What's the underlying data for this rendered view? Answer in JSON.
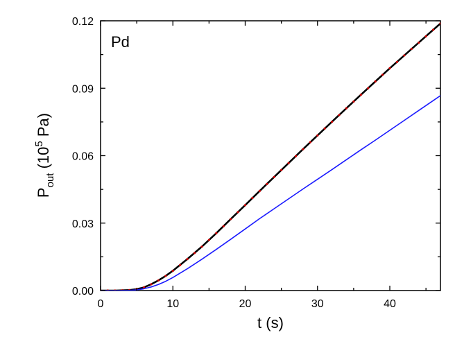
{
  "chart_data": {
    "type": "line",
    "title": "",
    "annotation": "Pd",
    "xlabel": "t (s)",
    "ylabel": {
      "base": "P",
      "subscript": "out",
      "unit_open": " (10",
      "superscript": "5",
      "unit_close": " Pa)"
    },
    "xlim": [
      0,
      47
    ],
    "ylim": [
      0,
      0.12
    ],
    "xticks": [
      0,
      10,
      20,
      30,
      40
    ],
    "xtick_labels": [
      "0",
      "10",
      "20",
      "30",
      "40"
    ],
    "yticks": [
      0,
      0.03,
      0.06,
      0.09,
      0.12
    ],
    "ytick_labels": [
      "0.00",
      "0.03",
      "0.06",
      "0.09",
      "0.12"
    ],
    "legend": "none",
    "grid": false,
    "colors": {
      "black": "#000000",
      "red": "#cc0000",
      "blue": "#1a1aff"
    },
    "series": [
      {
        "style": "line",
        "color": "#000000",
        "x": [
          0,
          2,
          4,
          5,
          6,
          7,
          8,
          9,
          10,
          12,
          14,
          16,
          18,
          20,
          22,
          24,
          26,
          28,
          30,
          32,
          34,
          36,
          38,
          40,
          42,
          44,
          46,
          47
        ],
        "y": [
          0,
          0,
          0.0002,
          0.0006,
          0.0014,
          0.0028,
          0.0045,
          0.0065,
          0.0088,
          0.014,
          0.0195,
          0.0255,
          0.0318,
          0.038,
          0.0443,
          0.0505,
          0.0567,
          0.0629,
          0.069,
          0.0751,
          0.0811,
          0.0871,
          0.093,
          0.0989,
          0.1046,
          0.1103,
          0.116,
          0.1188
        ]
      },
      {
        "style": "dots",
        "color": "#cc0000",
        "x": [
          0,
          1,
          2,
          3,
          4,
          5,
          6,
          7,
          8,
          9,
          10,
          11,
          12,
          13,
          14,
          15,
          16,
          17,
          18,
          19,
          20,
          21,
          22,
          23,
          24,
          25,
          26,
          27,
          28,
          29,
          30,
          31,
          32,
          33,
          34,
          35,
          36,
          37,
          38,
          39,
          40,
          41,
          42,
          43,
          44,
          45,
          46,
          47
        ],
        "y": [
          0,
          0,
          0,
          0.0001,
          0.0002,
          0.0006,
          0.0014,
          0.0028,
          0.0045,
          0.0065,
          0.0088,
          0.0113,
          0.014,
          0.0167,
          0.0195,
          0.0225,
          0.0255,
          0.0286,
          0.0318,
          0.0349,
          0.038,
          0.0412,
          0.0443,
          0.0474,
          0.0505,
          0.0536,
          0.0567,
          0.0598,
          0.0629,
          0.066,
          0.069,
          0.0721,
          0.0751,
          0.0781,
          0.0811,
          0.0841,
          0.0871,
          0.09,
          0.093,
          0.096,
          0.0989,
          0.1017,
          0.1046,
          0.1075,
          0.1103,
          0.1131,
          0.116,
          0.1188
        ]
      },
      {
        "style": "line",
        "color": "#1a1aff",
        "x": [
          0,
          2,
          4,
          5,
          6,
          7,
          8,
          9,
          10,
          12,
          14,
          16,
          18,
          20,
          22,
          24,
          26,
          28,
          30,
          32,
          34,
          36,
          38,
          40,
          42,
          44,
          46,
          47
        ],
        "y": [
          0,
          0,
          0.0001,
          0.0003,
          0.0008,
          0.0016,
          0.0027,
          0.0041,
          0.0058,
          0.0097,
          0.0139,
          0.0183,
          0.0228,
          0.0274,
          0.032,
          0.0364,
          0.0408,
          0.0452,
          0.0495,
          0.0538,
          0.0582,
          0.0626,
          0.0669,
          0.0713,
          0.0757,
          0.0801,
          0.0845,
          0.0867
        ]
      }
    ]
  }
}
